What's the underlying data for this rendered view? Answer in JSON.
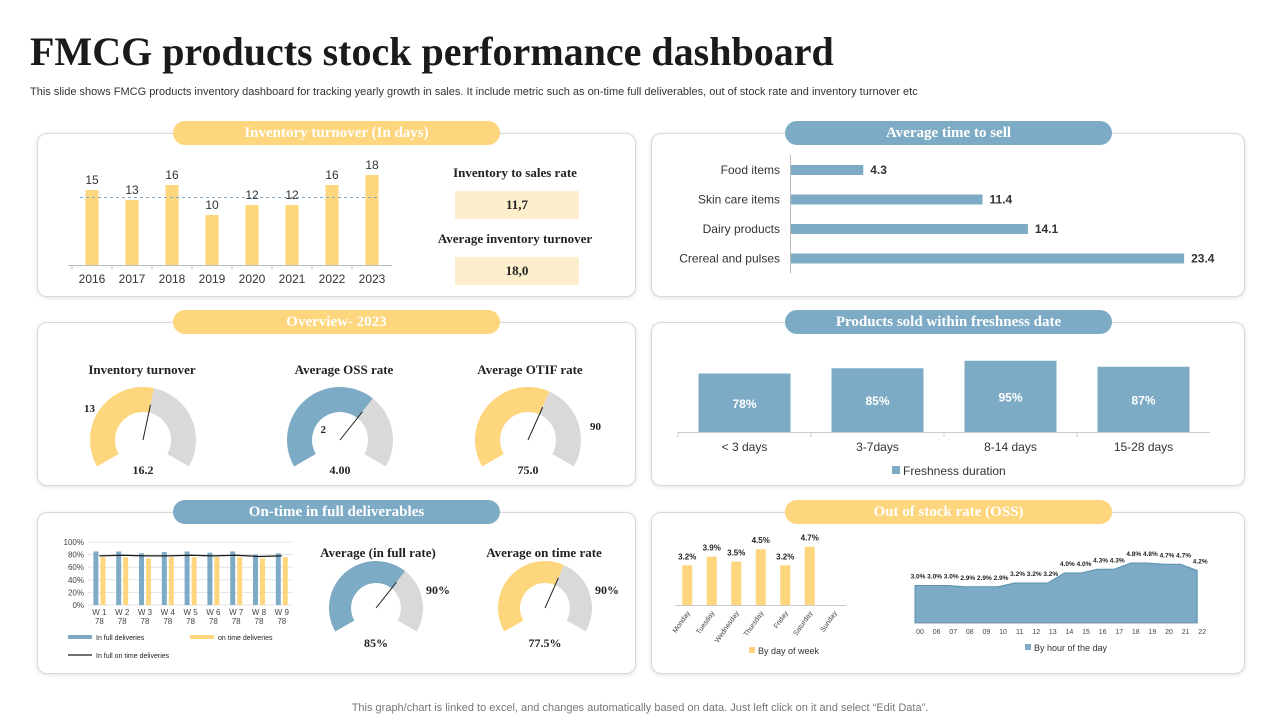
{
  "title": "FMCG products stock performance dashboard",
  "subtitle": "This slide shows FMCG products inventory dashboard for tracking yearly growth in sales. It include metric such as on-time full deliverables, out of stock rate and inventory turnover etc",
  "footer": "This graph/chart is linked to excel,  and changes automatically based on data. Just left click on it and select “Edit Data”.",
  "colors": {
    "yellow": "#fdd67e",
    "blue": "#7dabc6",
    "grey": "#d9d9d9",
    "light_yellow": "#fdefcb"
  },
  "inventory_panel": {
    "header": "Inventory turnover (In days)",
    "kpis": [
      {
        "label": "Inventory to sales rate",
        "value": "11,7"
      },
      {
        "label": "Average inventory turnover",
        "value": "18,0"
      }
    ]
  },
  "sell_panel": {
    "header": "Average time to sell"
  },
  "overview_panel": {
    "header": "Overview- 2023",
    "gauges": [
      {
        "title": "Inventory turnover",
        "value": "16.2",
        "side_label": "13",
        "fraction": 0.55,
        "color": "#fdd67e"
      },
      {
        "title": "Average OSS rate",
        "value": "4.00",
        "side_label": "2",
        "fraction": 0.66,
        "color": "#7dabc6"
      },
      {
        "title": "Average OTIF rate",
        "value": "75.0",
        "side_label": "90",
        "fraction": 0.6,
        "color": "#fdd67e"
      }
    ]
  },
  "freshness_panel": {
    "header": "Products sold within freshness date"
  },
  "otif_panel": {
    "header": "On-time in full deliverables",
    "gauges": [
      {
        "title": "Average (in full rate)",
        "value": "85%",
        "side_label": "90%",
        "fraction": 0.66,
        "color": "#7dabc6"
      },
      {
        "title": "Average on time rate",
        "value": "77.5%",
        "side_label": "90%",
        "fraction": 0.6,
        "color": "#fdd67e"
      }
    ]
  },
  "oss_panel": {
    "header": "Out of stock rate (OSS)"
  },
  "chart_data": [
    {
      "id": "inventory_turnover",
      "type": "bar",
      "title": "Inventory turnover (In days)",
      "categories": [
        "2016",
        "2017",
        "2018",
        "2019",
        "2020",
        "2021",
        "2022",
        "2023"
      ],
      "values": [
        15,
        13,
        16,
        10,
        12,
        12,
        16,
        18
      ],
      "average_line": 13.5,
      "ylim": [
        0,
        20
      ]
    },
    {
      "id": "avg_time_to_sell",
      "type": "bar",
      "orientation": "horizontal",
      "title": "Average time to sell",
      "categories": [
        "Food items",
        "Skin care items",
        "Dairy products",
        "Crereal and pulses"
      ],
      "values": [
        4.3,
        11.4,
        14.1,
        23.4
      ],
      "value_labels": [
        "4.3",
        "11.4",
        "14.1",
        "23.4"
      ],
      "xlim": [
        0,
        25
      ]
    },
    {
      "id": "freshness",
      "type": "bar",
      "title": "Products sold within freshness date",
      "categories": [
        "< 3 days",
        "3-7days",
        "8-14 days",
        "15-28 days"
      ],
      "values": [
        78,
        85,
        95,
        87
      ],
      "value_labels": [
        "78%",
        "85%",
        "95%",
        "87%"
      ],
      "legend": "Freshness duration",
      "ylim": [
        0,
        100
      ]
    },
    {
      "id": "otif_weekly",
      "type": "bar",
      "title": "On-time in full deliverables",
      "categories": [
        "W 1",
        "W 2",
        "W 3",
        "W 4",
        "W 5",
        "W 6",
        "W 7",
        "W 8",
        "W 9"
      ],
      "category_sublabel": "78",
      "yticks": [
        "0%",
        "20%",
        "40%",
        "60%",
        "80%",
        "100%"
      ],
      "ylim": [
        0,
        100
      ],
      "series": [
        {
          "name": "In full deliveries",
          "type": "bar",
          "color": "#7dabc6",
          "values": [
            85,
            85,
            82,
            84,
            85,
            83,
            85,
            80,
            82
          ]
        },
        {
          "name": "on time deliveries",
          "type": "bar",
          "color": "#fdd67e",
          "values": [
            76,
            76,
            74,
            76,
            76,
            76,
            76,
            74,
            76
          ]
        },
        {
          "name": "In full on time deliveries",
          "type": "line",
          "color": "#1a1a1a",
          "values": [
            78,
            79,
            78,
            78,
            79,
            78,
            79,
            77,
            78
          ]
        }
      ]
    },
    {
      "id": "oss_by_day",
      "type": "bar",
      "title": "Out of stock rate (OSS)",
      "categories": [
        "Monday",
        "Tuesday",
        "Wednesday",
        "Thursday",
        "Friday",
        "Saturday",
        "Sunday"
      ],
      "values": [
        3.2,
        3.9,
        3.5,
        4.5,
        3.2,
        4.7,
        null
      ],
      "value_labels": [
        "3.2%",
        "3.9%",
        "3.5%",
        "4.5%",
        "3.2%",
        "4.7%",
        ""
      ],
      "legend": "By day of week",
      "ylim": [
        0,
        5
      ]
    },
    {
      "id": "oss_by_hour",
      "type": "area",
      "title": "Out of stock rate (OSS)",
      "categories": [
        "00",
        "06",
        "07",
        "08",
        "09",
        "10",
        "11",
        "12",
        "13",
        "14",
        "15",
        "16",
        "17",
        "18",
        "19",
        "20",
        "21",
        "22"
      ],
      "values": [
        3.0,
        3.0,
        3.0,
        2.9,
        2.9,
        2.9,
        3.2,
        3.2,
        3.2,
        4.0,
        4.0,
        4.3,
        4.3,
        4.8,
        4.8,
        4.7,
        4.7,
        4.2
      ],
      "value_labels": [
        "3.0%",
        "3.0%",
        "3.0%",
        "2.9%",
        "2.9%",
        "2.9%",
        "3.2%",
        "3.2%",
        "3.2%",
        "4.0%",
        "4.0%",
        "4.3%",
        "4.3%",
        "4.8%",
        "4.8%",
        "4.7%",
        "4.7%",
        "4.2%"
      ],
      "legend": "By hour of the day",
      "ylim": [
        0,
        6
      ]
    }
  ]
}
